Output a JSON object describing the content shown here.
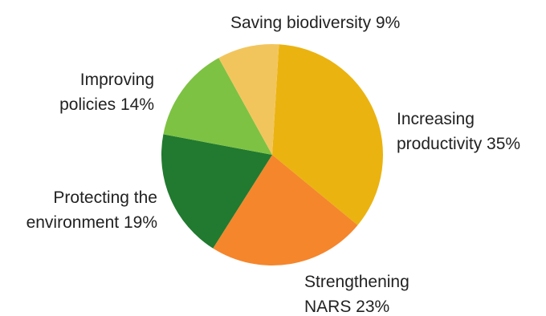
{
  "chart_data": {
    "type": "pie",
    "title": "",
    "slices": [
      {
        "label_lines": [
          "Increasing",
          "productivity 35%"
        ],
        "category": "Increasing productivity",
        "value": 35,
        "color": "#EBB310"
      },
      {
        "label_lines": [
          "Strengthening",
          "NARS 23%"
        ],
        "category": "Strengthening NARS",
        "value": 23,
        "color": "#F5862C"
      },
      {
        "label_lines": [
          "Protecting the",
          "environment 19%"
        ],
        "category": "Protecting the environment",
        "value": 19,
        "color": "#217A2F"
      },
      {
        "label_lines": [
          "Improving",
          "policies 14%"
        ],
        "category": "Improving policies",
        "value": 14,
        "color": "#7DC242"
      },
      {
        "label_lines": [
          "Saving biodiversity 9%"
        ],
        "category": "Saving biodiversity",
        "value": 9,
        "color": "#F2C55C"
      }
    ],
    "legend": "none",
    "start_direction": "12 o'clock, slightly clockwise",
    "direction": "clockwise"
  }
}
